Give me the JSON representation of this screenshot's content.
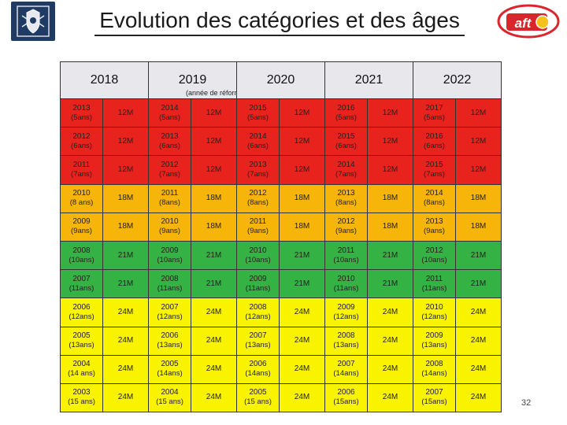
{
  "header": {
    "title": "Evolution des catégories et des âges",
    "logo_text": "aft",
    "logo_color": "#d9252b",
    "crest_color": "#1f3b63"
  },
  "table": {
    "columns": [
      {
        "year": "2018",
        "note": ""
      },
      {
        "year": "2019",
        "note": "(année de réforme)"
      },
      {
        "year": "2020",
        "note": ""
      },
      {
        "year": "2021",
        "note": ""
      },
      {
        "year": "2022",
        "note": ""
      }
    ],
    "rows": [
      {
        "color": "red",
        "cells": [
          {
            "year": "2013",
            "age": "(5ans)",
            "cat": "12M"
          },
          {
            "year": "2014",
            "age": "(5ans)",
            "cat": "12M"
          },
          {
            "year": "2015",
            "age": "(5ans)",
            "cat": "12M"
          },
          {
            "year": "2016",
            "age": "(5ans)",
            "cat": "12M"
          },
          {
            "year": "2017",
            "age": "(5ans)",
            "cat": "12M"
          }
        ]
      },
      {
        "color": "red",
        "cells": [
          {
            "year": "2012",
            "age": "(6ans)",
            "cat": "12M"
          },
          {
            "year": "2013",
            "age": "(6ans)",
            "cat": "12M"
          },
          {
            "year": "2014",
            "age": "(6ans)",
            "cat": "12M"
          },
          {
            "year": "2015",
            "age": "(6ans)",
            "cat": "12M"
          },
          {
            "year": "2016",
            "age": "(6ans)",
            "cat": "12M"
          }
        ]
      },
      {
        "color": "red",
        "cells": [
          {
            "year": "2011",
            "age": "(7ans)",
            "cat": "12M"
          },
          {
            "year": "2012",
            "age": "(7ans)",
            "cat": "12M"
          },
          {
            "year": "2013",
            "age": "(7ans)",
            "cat": "12M"
          },
          {
            "year": "2014",
            "age": "(7ans)",
            "cat": "12M"
          },
          {
            "year": "2015",
            "age": "(7ans)",
            "cat": "12M"
          }
        ]
      },
      {
        "color": "orange",
        "cells": [
          {
            "year": "2010",
            "age": "(8 ans)",
            "cat": "18M"
          },
          {
            "year": "2011",
            "age": "(8ans)",
            "cat": "18M"
          },
          {
            "year": "2012",
            "age": "(8ans)",
            "cat": "18M"
          },
          {
            "year": "2013",
            "age": "(8ans)",
            "cat": "18M"
          },
          {
            "year": "2014",
            "age": "(8ans)",
            "cat": "18M"
          }
        ]
      },
      {
        "color": "orange",
        "cells": [
          {
            "year": "2009",
            "age": "(9ans)",
            "cat": "18M"
          },
          {
            "year": "2010",
            "age": "(9ans)",
            "cat": "18M"
          },
          {
            "year": "2011",
            "age": "(9ans)",
            "cat": "18M"
          },
          {
            "year": "2012",
            "age": "(9ans)",
            "cat": "18M"
          },
          {
            "year": "2013",
            "age": "(9ans)",
            "cat": "18M"
          }
        ]
      },
      {
        "color": "green",
        "cells": [
          {
            "year": "2008",
            "age": "(10ans)",
            "cat": "21M"
          },
          {
            "year": "2009",
            "age": "(10ans)",
            "cat": "21M"
          },
          {
            "year": "2010",
            "age": "(10ans)",
            "cat": "21M"
          },
          {
            "year": "2011",
            "age": "(10ans)",
            "cat": "21M"
          },
          {
            "year": "2012",
            "age": "(10ans)",
            "cat": "21M"
          }
        ]
      },
      {
        "color": "green",
        "cells": [
          {
            "year": "2007",
            "age": "(11ans)",
            "cat": "21M"
          },
          {
            "year": "2008",
            "age": "(11ans)",
            "cat": "21M"
          },
          {
            "year": "2009",
            "age": "(11ans)",
            "cat": "21M"
          },
          {
            "year": "2010",
            "age": "(11ans)",
            "cat": "21M"
          },
          {
            "year": "2011",
            "age": "(11ans)",
            "cat": "21M"
          }
        ]
      },
      {
        "color": "yellow",
        "cells": [
          {
            "year": "2006",
            "age": "(12ans)",
            "cat": "24M"
          },
          {
            "year": "2007",
            "age": "(12ans)",
            "cat": "24M"
          },
          {
            "year": "2008",
            "age": "(12ans)",
            "cat": "24M"
          },
          {
            "year": "2009",
            "age": "(12ans)",
            "cat": "24M"
          },
          {
            "year": "2010",
            "age": "(12ans)",
            "cat": "24M"
          }
        ]
      },
      {
        "color": "yellow",
        "cells": [
          {
            "year": "2005",
            "age": "(13ans)",
            "cat": "24M"
          },
          {
            "year": "2006",
            "age": "(13ans)",
            "cat": "24M"
          },
          {
            "year": "2007",
            "age": "(13ans)",
            "cat": "24M"
          },
          {
            "year": "2008",
            "age": "(13ans)",
            "cat": "24M"
          },
          {
            "year": "2009",
            "age": "(13ans)",
            "cat": "24M"
          }
        ]
      },
      {
        "color": "yellow",
        "cells": [
          {
            "year": "2004",
            "age": "(14 ans)",
            "cat": "24M"
          },
          {
            "year": "2005",
            "age": "(14ans)",
            "cat": "24M"
          },
          {
            "year": "2006",
            "age": "(14ans)",
            "cat": "24M"
          },
          {
            "year": "2007",
            "age": "(14ans)",
            "cat": "24M"
          },
          {
            "year": "2008",
            "age": "(14ans)",
            "cat": "24M"
          }
        ]
      },
      {
        "color": "yellow",
        "cells": [
          {
            "year": "2003",
            "age": "(15 ans)",
            "cat": "24M"
          },
          {
            "year": "2004",
            "age": "(15 ans)",
            "cat": "24M"
          },
          {
            "year": "2005",
            "age": "(15 ans)",
            "cat": "24M"
          },
          {
            "year": "2006",
            "age": "(15ans)",
            "cat": "24M"
          },
          {
            "year": "2007",
            "age": "(15ans)",
            "cat": "24M"
          }
        ]
      }
    ]
  },
  "footer": {
    "page_number": "32"
  }
}
